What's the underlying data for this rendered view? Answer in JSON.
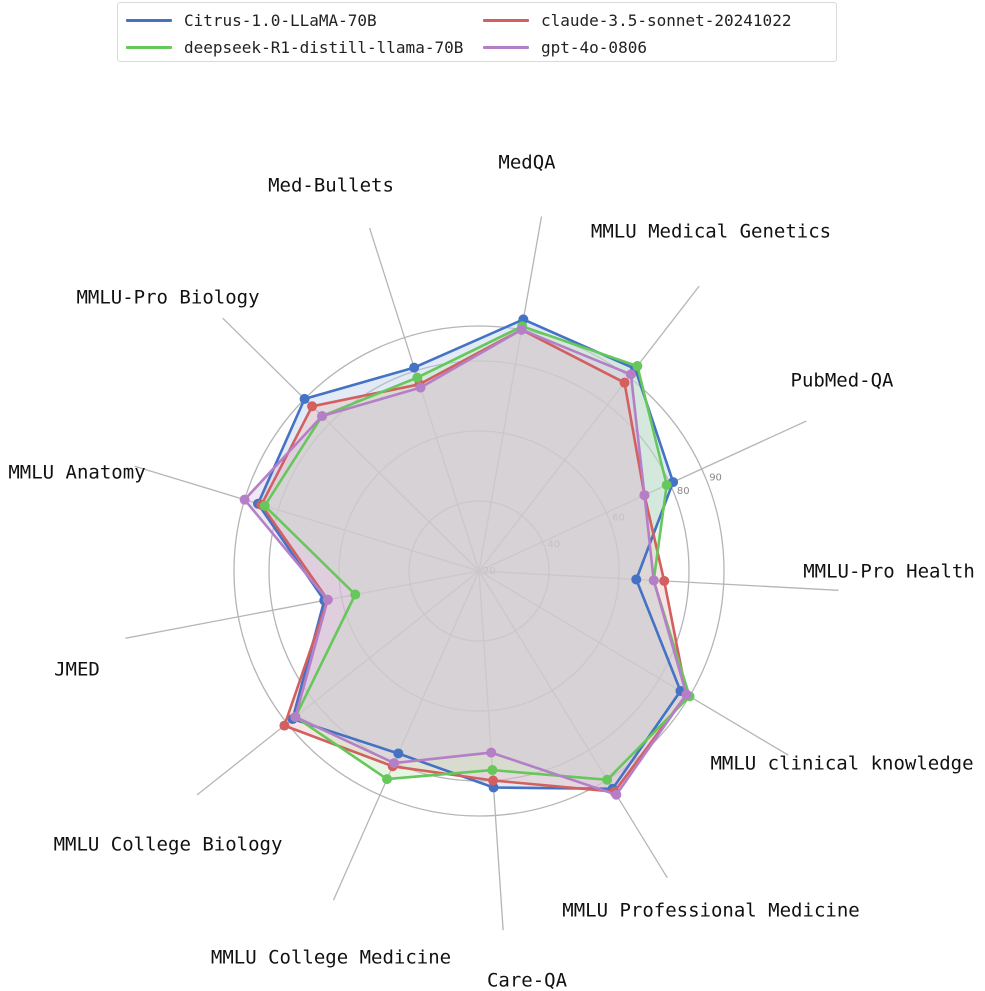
{
  "chart_data": {
    "type": "radar",
    "axes": [
      "MedQA",
      "MMLU Medical Genetics",
      "PubMed-QA",
      "MMLU-Pro Health",
      "MMLU clinical knowledge",
      "MMLU Professional Medicine",
      "Care-QA",
      "MMLU College Medicine",
      "MMLU College Biology",
      "JMED",
      "MMLU Anatomy",
      "MMLU-Pro Biology",
      "Med-Bullets"
    ],
    "rlim": [
      20,
      100
    ],
    "rticks": [
      "20",
      "40",
      "60",
      "80",
      "90"
    ],
    "rtick_values": [
      20,
      40,
      60,
      80,
      90
    ],
    "grid": true,
    "legend_position": "top",
    "series": [
      {
        "name": "Citrus-1.0-LLaMA-70B",
        "color": "#4472c4",
        "fill": "#b3c7e6",
        "values": [
          93,
          93,
          81,
          65,
          87,
          93,
          82,
          77,
          88,
          65,
          86,
          90,
          81
        ]
      },
      {
        "name": "claude-3.5-sonnet-20241022",
        "color": "#d35f5f",
        "fill": "#e9b8b8",
        "values": [
          90,
          88,
          72,
          73,
          89,
          94,
          80,
          81,
          91,
          64,
          85,
          87,
          76
        ]
      },
      {
        "name": "deepseek-R1-distill-llama-70B",
        "color": "#66c75a",
        "fill": "#bfe6b8",
        "values": [
          91,
          94,
          79,
          70,
          90,
          90,
          77,
          85,
          87,
          56,
          84,
          83,
          78
        ]
      },
      {
        "name": "gpt-4o-0806",
        "color": "#b57fc8",
        "fill": "#d6c2df",
        "values": [
          90,
          91,
          72,
          70,
          89,
          95,
          72,
          80,
          87,
          64,
          90,
          83,
          75
        ]
      }
    ]
  }
}
